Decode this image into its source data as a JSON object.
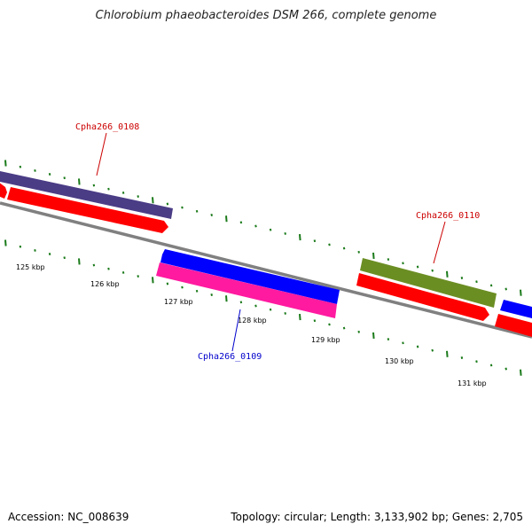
{
  "title": "Chlorobium phaeobacteroides DSM 266, complete genome",
  "footer": {
    "accession": "Accession: NC_008639",
    "summary": "Topology: circular; Length: 3,133,902 bp; Genes: 2,705"
  },
  "colors": {
    "backbone": "#808080",
    "tick": "#1a7a1a",
    "forward_cds": "#0000ff",
    "reverse_cds": "#ff0000",
    "gene_purple": "#4b3c86",
    "gene_magenta": "#ff1aa0",
    "gene_olive": "#6b8e23",
    "label_red": "#cc0000",
    "label_blue": "#0000cc"
  },
  "scale": {
    "unit": "kbp",
    "labels": [
      "125 kbp",
      "126 kbp",
      "127 kbp",
      "128 kbp",
      "129 kbp",
      "130 kbp",
      "131 kbp"
    ]
  },
  "features": [
    {
      "name": "Cpha266_0108",
      "label_color": "#cc0000",
      "color": "#4b3c86",
      "strand": "forward"
    },
    {
      "name": "Cpha266_0109",
      "label_color": "#0000cc",
      "color": "#ff1aa0",
      "strand": "reverse"
    },
    {
      "name": "Cpha266_0110",
      "label_color": "#cc0000",
      "color": "#6b8e23",
      "strand": "forward"
    }
  ]
}
